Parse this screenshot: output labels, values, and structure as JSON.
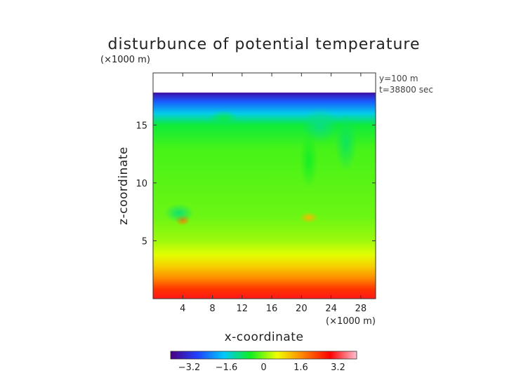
{
  "chart_data": {
    "type": "heatmap",
    "title": "disturbunce of potential temperature",
    "xlabel": "x-coordinate",
    "ylabel": "z-coordinate",
    "x_unit": "(×1000 m)",
    "y_unit": "(×1000 m)",
    "xlim": [
      0,
      30
    ],
    "ylim": [
      0,
      19.5
    ],
    "x_ticks": [
      4,
      8,
      12,
      16,
      20,
      24,
      28
    ],
    "y_ticks": [
      5,
      10,
      15
    ],
    "annotations": [
      "y=100 m",
      "t=38800 sec"
    ],
    "colorbar": {
      "range": [
        -4.0,
        4.0
      ],
      "ticks": [
        -3.2,
        -1.6,
        0,
        1.6,
        3.2
      ],
      "tick_labels": [
        "−3.2",
        "−1.6",
        "0",
        "1.6",
        "3.2"
      ],
      "colors": [
        "#4a0080",
        "#2040ff",
        "#00c8ff",
        "#10ef20",
        "#f0ff00",
        "#ff8000",
        "#ff0000",
        "#ffc0d0"
      ]
    },
    "vertical_profile": [
      {
        "z": 0.0,
        "value": 3.0
      },
      {
        "z": 0.8,
        "value": 2.4
      },
      {
        "z": 1.8,
        "value": 1.6
      },
      {
        "z": 2.8,
        "value": 1.0
      },
      {
        "z": 3.8,
        "value": 0.5
      },
      {
        "z": 5.0,
        "value": 0.15
      },
      {
        "z": 7.0,
        "value": -0.1
      },
      {
        "z": 10.0,
        "value": -0.2
      },
      {
        "z": 13.0,
        "value": -0.3
      },
      {
        "z": 15.0,
        "value": -0.7
      },
      {
        "z": 16.0,
        "value": -1.6
      },
      {
        "z": 17.0,
        "value": -2.6
      },
      {
        "z": 17.6,
        "value": -3.4
      },
      {
        "z": 17.8,
        "value": -3.8
      }
    ],
    "data_top_z": 17.8,
    "features": [
      {
        "x": 4.0,
        "z": 6.8,
        "value": 1.8,
        "rx": 1.0,
        "rz": 0.5
      },
      {
        "x": 21.0,
        "z": 7.0,
        "value": 1.2,
        "rx": 1.3,
        "rz": 0.5
      },
      {
        "x": 3.5,
        "z": 7.4,
        "value": -1.0,
        "rx": 2.0,
        "rz": 0.8
      },
      {
        "x": 22.5,
        "z": 15.0,
        "value": -1.1,
        "rx": 2.5,
        "rz": 1.5
      },
      {
        "x": 26.0,
        "z": 13.5,
        "value": -0.9,
        "rx": 1.5,
        "rz": 2.5
      },
      {
        "x": 9.5,
        "z": 15.5,
        "value": -0.8,
        "rx": 2.0,
        "rz": 0.8
      },
      {
        "x": 21.0,
        "z": 12.0,
        "value": -0.6,
        "rx": 1.2,
        "rz": 2.5
      }
    ]
  }
}
